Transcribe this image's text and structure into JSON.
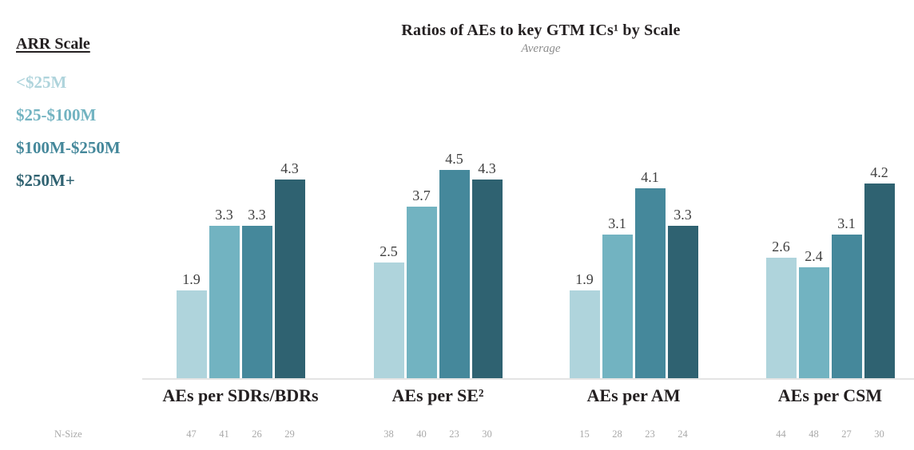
{
  "title": "Ratios of AEs to key GTM ICs¹ by Scale",
  "subtitle": "Average",
  "legend": {
    "heading": "ARR Scale",
    "items": [
      {
        "label": "<$25M",
        "color": "#afd4dc"
      },
      {
        "label": "$25-$100M",
        "color": "#72b3c1"
      },
      {
        "label": "$100M-$250M",
        "color": "#45889b"
      },
      {
        "label": "$250M+",
        "color": "#2f6271"
      }
    ]
  },
  "n_size_label": "N-Size",
  "chart_data": {
    "type": "bar",
    "title": "Ratios of AEs to key GTM ICs¹ by Scale",
    "subtitle": "Average",
    "categories": [
      "AEs per SDRs/BDRs",
      "AEs per SE²",
      "AEs per AM",
      "AEs per CSM"
    ],
    "series": [
      {
        "name": "<$25M",
        "color": "#afd4dc",
        "values": [
          1.9,
          2.5,
          1.9,
          2.6
        ],
        "n_sizes": [
          47,
          38,
          15,
          44
        ]
      },
      {
        "name": "$25-$100M",
        "color": "#72b3c1",
        "values": [
          3.3,
          3.7,
          3.1,
          2.4
        ],
        "n_sizes": [
          41,
          40,
          28,
          48
        ]
      },
      {
        "name": "$100M-$250M",
        "color": "#45889b",
        "values": [
          3.3,
          4.5,
          4.1,
          3.1
        ],
        "n_sizes": [
          26,
          23,
          23,
          27
        ]
      },
      {
        "name": "$250M+",
        "color": "#2f6271",
        "values": [
          4.3,
          4.3,
          3.3,
          4.2
        ],
        "n_sizes": [
          29,
          30,
          24,
          30
        ]
      }
    ],
    "ylim": [
      0,
      5
    ],
    "grid": false,
    "legend_position": "top-left",
    "value_labels": true,
    "xlabel": "",
    "ylabel": ""
  }
}
